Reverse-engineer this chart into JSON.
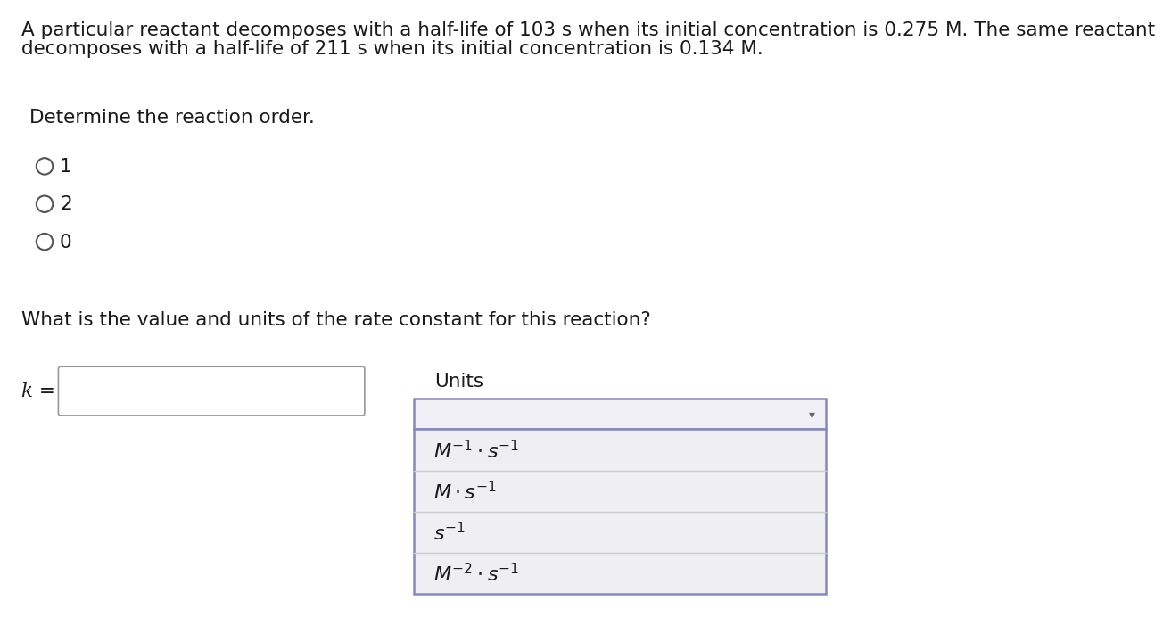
{
  "bg_color": "#ffffff",
  "text_color": "#1a1a1a",
  "header_line1": "A particular reactant decomposes with a half-life of 103 s when its initial concentration is 0.275 M. The same reactant",
  "header_line2": "decomposes with a half-life of 211 s when its initial concentration is 0.134 M.",
  "section1_label": "Determine the reaction order.",
  "radio_options": [
    "1",
    "2",
    "0"
  ],
  "section2_label": "What is the value and units of the rate constant for this reaction?",
  "k_label": "k =",
  "units_label": "Units",
  "dropdown_items": [
    "$M^{-1} \\cdot s^{-1}$",
    "$M \\cdot s^{-1}$",
    "$s^{-1}$",
    "$M^{-2} \\cdot s^{-1}$"
  ],
  "input_box_border": "#999999",
  "dropdown_border": "#8888bb",
  "dropdown_item_bg": "#eeeef3",
  "dropdown_top_bg": "#eeeef3",
  "radio_circle_color": "#555555",
  "font_size_main": 15.5,
  "font_size_math": 16
}
